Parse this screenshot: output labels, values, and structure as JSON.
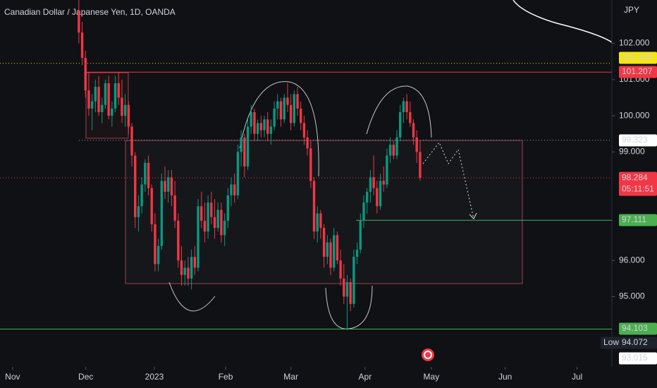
{
  "chart_data": {
    "type": "candlestick",
    "title": "Canadian Dollar / Japanese Yen, 1D, OANDA",
    "currency": "JPY",
    "up_color": "#089981",
    "down_color": "#f23645",
    "ylim": [
      93.06,
      103.2
    ],
    "yticks": [
      {
        "value": 95,
        "label": "95.000"
      },
      {
        "value": 96,
        "label": "96.000"
      },
      {
        "value": 99,
        "label": "99.000"
      },
      {
        "value": 100,
        "label": "100.000"
      },
      {
        "value": 101,
        "label": "101.000"
      },
      {
        "value": 102,
        "label": "102.000"
      }
    ],
    "xlim": [
      -23.8,
      160.9
    ],
    "xticks": [
      {
        "value": -20,
        "label": "Nov"
      },
      {
        "value": 2.1,
        "label": "Dec"
      },
      {
        "value": 22.8,
        "label": "2023"
      },
      {
        "value": 44.3,
        "label": "Feb"
      },
      {
        "value": 64,
        "label": "Mar"
      },
      {
        "value": 86.4,
        "label": "Apr"
      },
      {
        "value": 106.4,
        "label": "May"
      },
      {
        "value": 128.7,
        "label": "Jun"
      },
      {
        "value": 150.4,
        "label": "Jul"
      }
    ],
    "ohlc": [
      [
        102.9,
        103.2,
        102.0,
        102.3
      ],
      [
        102.3,
        102.6,
        101.4,
        101.6
      ],
      [
        101.6,
        101.8,
        100.5,
        100.7
      ],
      [
        100.7,
        101.2,
        100.0,
        100.2
      ],
      [
        100.2,
        100.6,
        99.6,
        100.4
      ],
      [
        100.4,
        101.0,
        100.1,
        100.8
      ],
      [
        100.8,
        101.1,
        100.0,
        100.1
      ],
      [
        100.1,
        100.5,
        99.8,
        100.3
      ],
      [
        100.3,
        101.0,
        100.2,
        100.9
      ],
      [
        100.9,
        101.1,
        99.9,
        100.0
      ],
      [
        100.0,
        100.4,
        99.7,
        100.2
      ],
      [
        100.2,
        101.1,
        100.1,
        100.9
      ],
      [
        100.9,
        101.2,
        100.3,
        100.5
      ],
      [
        100.5,
        101.0,
        99.8,
        100.0
      ],
      [
        100.0,
        100.6,
        99.7,
        100.3
      ],
      [
        100.3,
        100.4,
        99.5,
        99.7
      ],
      [
        99.7,
        99.8,
        98.6,
        98.9
      ],
      [
        98.9,
        99.0,
        96.9,
        97.2
      ],
      [
        97.2,
        97.8,
        96.8,
        97.5
      ],
      [
        97.5,
        98.3,
        97.3,
        98.1
      ],
      [
        98.1,
        98.8,
        97.9,
        98.7
      ],
      [
        98.7,
        98.9,
        97.8,
        98.0
      ],
      [
        98.0,
        98.1,
        96.8,
        97.0
      ],
      [
        97.0,
        97.3,
        95.7,
        95.9
      ],
      [
        95.9,
        96.6,
        95.7,
        96.4
      ],
      [
        96.4,
        98.4,
        96.3,
        98.2
      ],
      [
        98.2,
        98.6,
        97.7,
        97.9
      ],
      [
        97.9,
        98.5,
        97.6,
        98.3
      ],
      [
        98.3,
        98.5,
        97.5,
        97.8
      ],
      [
        97.8,
        98.2,
        96.9,
        97.1
      ],
      [
        97.1,
        97.3,
        95.8,
        96.0
      ],
      [
        96.0,
        96.4,
        95.3,
        95.6
      ],
      [
        95.6,
        96.0,
        95.3,
        95.8
      ],
      [
        95.8,
        96.1,
        95.3,
        95.5
      ],
      [
        95.5,
        96.3,
        95.2,
        96.1
      ],
      [
        96.1,
        96.4,
        95.6,
        95.8
      ],
      [
        95.8,
        97.7,
        95.7,
        97.5
      ],
      [
        97.5,
        97.9,
        96.9,
        97.1
      ],
      [
        97.1,
        97.6,
        96.5,
        96.8
      ],
      [
        96.8,
        97.8,
        96.6,
        97.6
      ],
      [
        97.6,
        97.9,
        97.0,
        97.2
      ],
      [
        97.2,
        97.7,
        96.6,
        96.9
      ],
      [
        96.9,
        97.6,
        96.8,
        97.4
      ],
      [
        97.4,
        97.6,
        96.5,
        96.7
      ],
      [
        96.7,
        97.3,
        96.4,
        97.1
      ],
      [
        97.1,
        98.0,
        96.9,
        97.8
      ],
      [
        97.8,
        98.3,
        97.5,
        98.1
      ],
      [
        98.1,
        98.4,
        97.6,
        97.8
      ],
      [
        97.8,
        99.2,
        97.7,
        99.0
      ],
      [
        99.0,
        99.6,
        98.6,
        99.4
      ],
      [
        99.4,
        99.5,
        98.3,
        98.6
      ],
      [
        98.6,
        99.9,
        98.5,
        99.7
      ],
      [
        99.7,
        100.3,
        99.5,
        100.1
      ],
      [
        100.1,
        100.2,
        99.3,
        99.5
      ],
      [
        99.5,
        99.9,
        99.3,
        99.8
      ],
      [
        99.8,
        100.0,
        99.4,
        99.6
      ],
      [
        99.6,
        100.0,
        99.4,
        99.9
      ],
      [
        99.9,
        100.1,
        99.3,
        99.5
      ],
      [
        99.5,
        99.9,
        99.2,
        99.7
      ],
      [
        99.7,
        100.4,
        99.6,
        100.2
      ],
      [
        100.2,
        100.6,
        99.9,
        100.4
      ],
      [
        100.4,
        100.5,
        99.7,
        99.9
      ],
      [
        99.9,
        100.6,
        99.8,
        100.5
      ],
      [
        100.5,
        100.9,
        100.1,
        100.3
      ],
      [
        100.3,
        100.6,
        99.6,
        99.8
      ],
      [
        99.8,
        100.7,
        99.7,
        100.6
      ],
      [
        100.6,
        100.8,
        100.0,
        100.2
      ],
      [
        100.2,
        100.4,
        99.6,
        99.8
      ],
      [
        99.8,
        100.0,
        99.2,
        99.4
      ],
      [
        99.4,
        99.6,
        98.9,
        99.1
      ],
      [
        99.1,
        99.3,
        98.0,
        98.2
      ],
      [
        98.2,
        98.3,
        96.6,
        96.8
      ],
      [
        96.8,
        97.5,
        96.5,
        97.3
      ],
      [
        97.3,
        97.4,
        96.6,
        96.9
      ],
      [
        96.9,
        97.0,
        95.8,
        96.1
      ],
      [
        96.1,
        96.7,
        95.9,
        96.5
      ],
      [
        96.5,
        96.6,
        95.6,
        95.8
      ],
      [
        95.8,
        96.9,
        95.7,
        96.7
      ],
      [
        96.7,
        96.8,
        95.9,
        96.0
      ],
      [
        96.0,
        96.3,
        95.3,
        95.5
      ],
      [
        95.5,
        95.9,
        94.8,
        95.0
      ],
      [
        95.0,
        95.6,
        94.072,
        95.4
      ],
      [
        95.4,
        95.5,
        94.6,
        94.8
      ],
      [
        94.8,
        96.3,
        94.7,
        96.1
      ],
      [
        96.1,
        96.5,
        95.9,
        96.3
      ],
      [
        96.3,
        97.3,
        96.2,
        97.1
      ],
      [
        97.1,
        97.8,
        96.9,
        97.6
      ],
      [
        97.6,
        98.0,
        97.3,
        97.9
      ],
      [
        97.9,
        98.5,
        97.6,
        98.3
      ],
      [
        98.3,
        98.9,
        97.8,
        98.0
      ],
      [
        98.0,
        98.2,
        97.3,
        97.5
      ],
      [
        97.5,
        98.4,
        97.4,
        98.2
      ],
      [
        98.2,
        98.6,
        97.9,
        98.1
      ],
      [
        98.1,
        99.1,
        98.0,
        98.9
      ],
      [
        98.9,
        99.4,
        98.7,
        99.2
      ],
      [
        99.2,
        99.3,
        98.8,
        98.9
      ],
      [
        98.9,
        99.6,
        98.8,
        99.4
      ],
      [
        99.4,
        100.3,
        99.3,
        100.1
      ],
      [
        100.1,
        100.5,
        99.8,
        100.4
      ],
      [
        100.4,
        100.6,
        99.9,
        100.1
      ],
      [
        100.1,
        100.4,
        99.7,
        99.8
      ],
      [
        99.8,
        99.9,
        99.2,
        99.4
      ],
      [
        99.4,
        99.6,
        98.7,
        99.0
      ],
      [
        99.0,
        99.3,
        98.2,
        98.284
      ]
    ],
    "levels": [
      {
        "value": 101.449,
        "label": "101.449",
        "color": "#f5e60c",
        "text_color": "#131722"
      },
      {
        "value": 101.207,
        "label": "101.207",
        "color": "#f23645",
        "text_color": "#ffffff"
      },
      {
        "value": 99.323,
        "label": "99.323",
        "color": "#ffffff",
        "text_color": "#131722"
      },
      {
        "value": 98.284,
        "label": "98.284",
        "color": "#f23645",
        "text_color": "#ffffff"
      },
      {
        "value": 97.111,
        "label": "97.111",
        "color": "#4caf50",
        "text_color": "#ffffff"
      },
      {
        "value": 94.103,
        "label": "94.103",
        "color": "#4caf50",
        "text_color": "#ffffff"
      },
      {
        "value": 94.072,
        "label": "94.072",
        "color": "#1e222d",
        "text_color": "#ffffff"
      },
      {
        "value": 93.015,
        "label": "93.015",
        "color": "#ffffff",
        "text_color": "#131722"
      }
    ],
    "countdown": "05:11:51",
    "low_label": "Low"
  }
}
